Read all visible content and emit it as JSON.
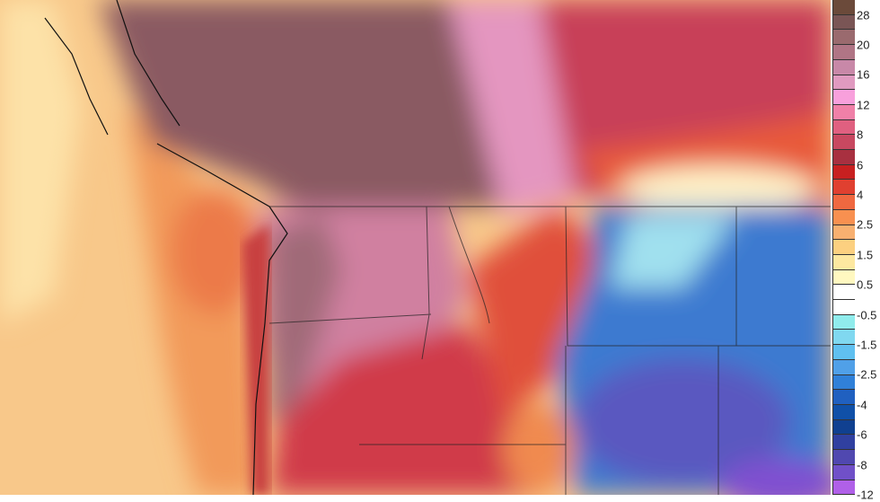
{
  "legend": {
    "labels": [
      "28",
      "20",
      "16",
      "12",
      "8",
      "6",
      "4",
      "2.5",
      "1.5",
      "0.5",
      "-0.5",
      "-1.5",
      "-2.5",
      "-4",
      "-6",
      "-8",
      "-12"
    ],
    "colors": [
      "#6b4a3a",
      "#7a5555",
      "#9a6a6e",
      "#b07585",
      "#c888a8",
      "#e09ac0",
      "#f8a0dc",
      "#f080a8",
      "#e06080",
      "#c84860",
      "#a83040",
      "#c82020",
      "#e04030",
      "#f06840",
      "#f89050",
      "#f8b070",
      "#fcd080",
      "#fde8a0",
      "#fff8c0",
      "#ffffff",
      "#ffffff",
      "#90ecec",
      "#80d8f0",
      "#60c0f0",
      "#50a0e8",
      "#3080d8",
      "#2060c0",
      "#1050a8",
      "#104090",
      "#3040a0",
      "#5048b0",
      "#7050c8",
      "#b060e8"
    ]
  }
}
